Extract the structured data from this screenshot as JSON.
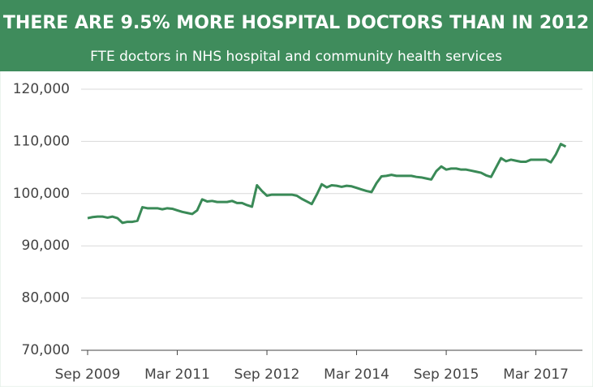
{
  "chart_data": {
    "type": "line",
    "title": "THERE ARE 9.5% MORE HOSPITAL DOCTORS THAN IN 2012",
    "subtitle": "FTE doctors in NHS hospital and community health services",
    "x": [
      "Sep 2009",
      "Oct 2009",
      "Nov 2009",
      "Dec 2009",
      "Jan 2010",
      "Feb 2010",
      "Mar 2010",
      "Apr 2010",
      "May 2010",
      "Jun 2010",
      "Jul 2010",
      "Aug 2010",
      "Sep 2010",
      "Oct 2010",
      "Nov 2010",
      "Dec 2010",
      "Jan 2011",
      "Feb 2011",
      "Mar 2011",
      "Apr 2011",
      "May 2011",
      "Jun 2011",
      "Jul 2011",
      "Aug 2011",
      "Sep 2011",
      "Oct 2011",
      "Nov 2011",
      "Dec 2011",
      "Jan 2012",
      "Feb 2012",
      "Mar 2012",
      "Apr 2012",
      "May 2012",
      "Jun 2012",
      "Jul 2012",
      "Aug 2012",
      "Sep 2012",
      "Oct 2012",
      "Nov 2012",
      "Dec 2012",
      "Jan 2013",
      "Feb 2013",
      "Mar 2013",
      "Apr 2013",
      "May 2013",
      "Jun 2013",
      "Jul 2013",
      "Aug 2013",
      "Sep 2013",
      "Oct 2013",
      "Nov 2013",
      "Dec 2013",
      "Jan 2014",
      "Feb 2014",
      "Mar 2014",
      "Apr 2014",
      "May 2014",
      "Jun 2014",
      "Jul 2014",
      "Aug 2014",
      "Sep 2014",
      "Oct 2014",
      "Nov 2014",
      "Dec 2014",
      "Jan 2015",
      "Feb 2015",
      "Mar 2015",
      "Apr 2015",
      "May 2015",
      "Jun 2015",
      "Jul 2015",
      "Aug 2015",
      "Sep 2015",
      "Oct 2015",
      "Nov 2015",
      "Dec 2015",
      "Jan 2016",
      "Feb 2016",
      "Mar 2016",
      "Apr 2016",
      "May 2016",
      "Jun 2016",
      "Jul 2016",
      "Aug 2016",
      "Sep 2016",
      "Oct 2016",
      "Nov 2016",
      "Dec 2016",
      "Jan 2017",
      "Feb 2017",
      "Mar 2017",
      "Apr 2017",
      "May 2017",
      "Jun 2017",
      "Jul 2017",
      "Aug 2017",
      "Sep 2017"
    ],
    "series": [
      {
        "color": "#3a8a57",
        "values": [
          95300,
          95500,
          95600,
          95600,
          95400,
          95600,
          95300,
          94400,
          94600,
          94600,
          94800,
          97400,
          97200,
          97200,
          97200,
          97000,
          97200,
          97100,
          96800,
          96500,
          96300,
          96100,
          96800,
          98900,
          98500,
          98600,
          98400,
          98400,
          98400,
          98600,
          98200,
          98200,
          97800,
          97500,
          101600,
          100500,
          99600,
          99800,
          99800,
          99800,
          99800,
          99800,
          99600,
          99000,
          98500,
          98000,
          99800,
          101800,
          101200,
          101600,
          101500,
          101300,
          101500,
          101400,
          101100,
          100800,
          100500,
          100300,
          102000,
          103300,
          103400,
          103600,
          103400,
          103400,
          103400,
          103400,
          103200,
          103100,
          102900,
          102700,
          104300,
          105200,
          104600,
          104800,
          104800,
          104600,
          104600,
          104400,
          104200,
          104000,
          103500,
          103200,
          105000,
          106800,
          106200,
          106500,
          106300,
          106100,
          106100,
          106500,
          106500,
          106500,
          106500,
          106000,
          107500,
          109500,
          109000
        ]
      }
    ],
    "xticks": [
      "Sep 2009",
      "Mar 2011",
      "Sep 2012",
      "Mar 2014",
      "Sep 2015",
      "Mar 2017"
    ],
    "ylim": [
      70000,
      120000
    ],
    "yticks": [
      {
        "value": 70000,
        "label": "70,000"
      },
      {
        "value": 80000,
        "label": "80,000"
      },
      {
        "value": 90000,
        "label": "90,000"
      },
      {
        "value": 100000,
        "label": "100,000"
      },
      {
        "value": 110000,
        "label": "110,000"
      },
      {
        "value": 120000,
        "label": "120,000"
      }
    ],
    "grid": true
  }
}
